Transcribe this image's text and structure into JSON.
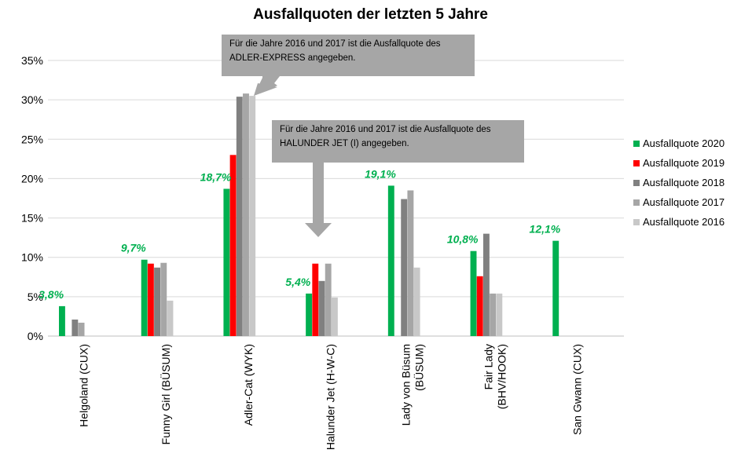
{
  "colors": {
    "grid": "#d9d9d9",
    "axis": "#000000",
    "label_green": "#00b050",
    "callout_bg": "#a6a6a6"
  },
  "chart_data": {
    "type": "bar",
    "title": "Ausfallquoten der letzten 5 Jahre",
    "ylim": [
      0,
      35
    ],
    "yticks": [
      "0%",
      "5%",
      "10%",
      "15%",
      "20%",
      "25%",
      "30%",
      "35%"
    ],
    "categories": [
      [
        "Helgoland (CUX)"
      ],
      [
        "Funny Girl (BÜSUM)"
      ],
      [
        "Adler-Cat (WYK)"
      ],
      [
        "Halunder Jet (H-W-C)"
      ],
      [
        "Lady von Büsum",
        "(BÜSUM)"
      ],
      [
        "Fair Lady",
        "(BHV/HOOK)"
      ],
      [
        "San Gwann (CUX)"
      ]
    ],
    "series": [
      {
        "name": "Ausfallquote 2020",
        "color": "#00b050",
        "values": [
          3.8,
          9.7,
          18.7,
          5.4,
          19.1,
          10.8,
          12.1
        ]
      },
      {
        "name": "Ausfallquote 2019",
        "color": "#ff0000",
        "values": [
          0,
          9.2,
          23.0,
          9.2,
          0,
          7.6,
          0
        ]
      },
      {
        "name": "Ausfallquote 2018",
        "color": "#808080",
        "values": [
          2.1,
          8.7,
          30.4,
          7.0,
          17.4,
          13.0,
          0
        ]
      },
      {
        "name": "Ausfallquote 2017",
        "color": "#a6a6a6",
        "values": [
          1.7,
          9.3,
          30.8,
          9.2,
          18.5,
          5.4,
          0
        ]
      },
      {
        "name": "Ausfallquote 2016",
        "color": "#c8c8c8",
        "values": [
          0,
          4.5,
          30.5,
          4.9,
          8.7,
          5.4,
          0
        ]
      }
    ],
    "data_labels": [
      "3,8%",
      "9,7%",
      "18,7%",
      "5,4%",
      "19,1%",
      "10,8%",
      "12,1%"
    ],
    "legend": "right",
    "grid": true,
    "annotations": [
      {
        "lines": [
          "Für die Jahre 2016 und 2017 ist die Ausfallquote des",
          "ADLER-EXPRESS angegeben."
        ]
      },
      {
        "lines": [
          "Für die Jahre 2016 und 2017 ist die Ausfallquote des",
          "HALUNDER JET (I) angegeben."
        ]
      }
    ]
  }
}
